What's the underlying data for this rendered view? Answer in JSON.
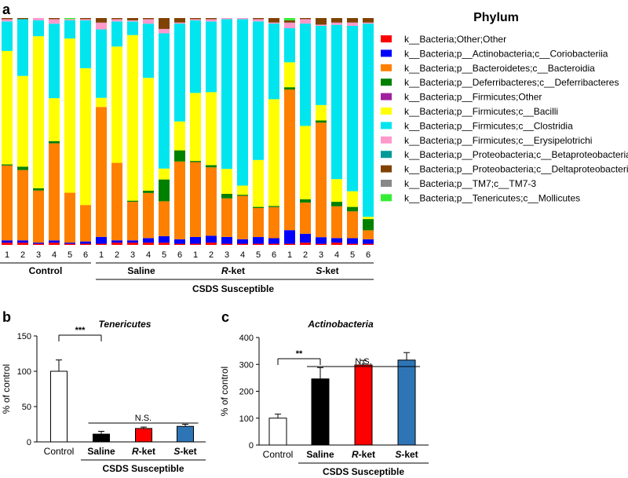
{
  "panel_labels": {
    "a": "a",
    "b": "b",
    "c": "c"
  },
  "group_labels": {
    "control": "Control",
    "saline": "Saline",
    "rket_prefix": "R",
    "sket_prefix": "S",
    "ket_suffix": "-ket",
    "csds": "CSDS Susceptible"
  },
  "chart_data": [
    {
      "type": "stacked_bar",
      "title": "Phylum",
      "sample_labels": [
        "1",
        "2",
        "3",
        "4",
        "5",
        "6",
        "1",
        "2",
        "3",
        "4",
        "5",
        "6",
        "1",
        "2",
        "3",
        "4",
        "5",
        "6",
        "1",
        "2",
        "3",
        "4",
        "5",
        "6"
      ],
      "series": [
        {
          "name": "k__Bacteria;Other;Other",
          "color": "#ff0000",
          "values": [
            1,
            1,
            0.5,
            1,
            0.5,
            0.5,
            0.5,
            1,
            1,
            1,
            1,
            0.5,
            0.5,
            1,
            0.5,
            0.5,
            0.5,
            0.5,
            0.5,
            1,
            0.5,
            1,
            0.5,
            0.5
          ]
        },
        {
          "name": "k__Bacteria;p__Actinobacteria;c__Coriobacteriia",
          "color": "#0000ff",
          "values": [
            1,
            1,
            0.5,
            1,
            0.5,
            1,
            3,
            1,
            1,
            2,
            3,
            2,
            3,
            3,
            3,
            2,
            3,
            2.5,
            6,
            4,
            3,
            2,
            2.5,
            2
          ]
        },
        {
          "name": "k__Bacteria;p__Bacteroidetes;c__Bacteroidia",
          "color": "#ff7f00",
          "values": [
            33,
            31,
            23,
            43,
            22,
            16,
            57,
            34,
            17,
            20,
            16,
            35,
            33,
            30,
            17,
            19,
            13,
            14,
            62,
            14,
            52,
            14,
            12,
            4
          ]
        },
        {
          "name": "k__Bacteria;p__Deferribacteres;c__Deferribacteres",
          "color": "#008000",
          "values": [
            0.5,
            1.5,
            1,
            1,
            0,
            0,
            0,
            0,
            0.5,
            1,
            10,
            5,
            0.5,
            1,
            2,
            0.5,
            0.5,
            0.5,
            1,
            1.5,
            1,
            2,
            2,
            5
          ]
        },
        {
          "name": "k__Bacteria;p__Firmicutes;Other",
          "color": "#a020a0",
          "values": [
            0,
            0,
            0,
            0,
            0,
            0,
            0,
            0,
            0,
            0,
            0,
            0,
            0,
            0,
            0,
            0,
            0,
            0,
            0,
            0,
            0,
            0,
            0,
            0
          ]
        },
        {
          "name": "k__Bacteria;p__Firmicutes;c__Bacilli",
          "color": "#ffff00",
          "values": [
            50,
            40,
            67,
            19,
            68,
            60,
            4,
            51,
            73,
            50,
            5,
            13,
            30,
            32,
            11,
            4,
            21,
            48,
            11,
            33,
            7,
            10,
            7,
            1
          ]
        },
        {
          "name": "k__Bacteria;p__Firmicutes;c__Clostridia",
          "color": "#00e5ee",
          "values": [
            13,
            25,
            7,
            33,
            8,
            21,
            30,
            11,
            6,
            24,
            62,
            44,
            32,
            31,
            66,
            73,
            62,
            34,
            15,
            46,
            36,
            68,
            74,
            86
          ]
        },
        {
          "name": "k__Bacteria;p__Firmicutes;c__Erysipelotrichi",
          "color": "#ff99cc",
          "values": [
            1,
            0,
            1,
            2,
            0.5,
            0.5,
            3,
            1,
            0.5,
            2,
            2,
            0.5,
            0.5,
            1,
            0.5,
            0.5,
            1,
            0.5,
            2.5,
            2,
            0.5,
            1,
            1.5,
            0.5
          ]
        },
        {
          "name": "k__Bacteria;p__Proteobacteria;c__Betaproteobacteria",
          "color": "#009999",
          "values": [
            0,
            0,
            0,
            0,
            0,
            0,
            0,
            0,
            0,
            0,
            0,
            0,
            0,
            0,
            0,
            0,
            0,
            0,
            0,
            0,
            0,
            0,
            0,
            0
          ]
        },
        {
          "name": "k__Bacteria;p__Proteobacteria;c__Deltaproteobacteria",
          "color": "#7f4200",
          "values": [
            0.5,
            0.5,
            0,
            0.5,
            0,
            0.5,
            2,
            0.5,
            1,
            0.5,
            5,
            2,
            0.5,
            0.5,
            0,
            0,
            0.5,
            2,
            1,
            0.5,
            3,
            2,
            2,
            2
          ]
        },
        {
          "name": "k__Bacteria;p__TM7;c__TM7-3",
          "color": "#888888",
          "values": [
            0,
            0,
            0,
            0,
            0,
            0,
            0,
            0,
            0,
            0,
            0,
            0,
            0,
            0,
            0,
            0,
            0,
            0,
            0,
            0,
            0,
            0,
            0,
            0
          ]
        },
        {
          "name": "k__Bacteria;p__Tenericutes;c__Mollicutes",
          "color": "#33ee33",
          "values": [
            0,
            0,
            0,
            0,
            0.5,
            0,
            0,
            0,
            0,
            0,
            0,
            0,
            0,
            0,
            0,
            0,
            0,
            0,
            1,
            0,
            0,
            0,
            0,
            0
          ]
        }
      ]
    },
    {
      "type": "bar",
      "title": "Tenericutes",
      "ylabel": "% of control",
      "ylim": [
        0,
        150
      ],
      "yticks": [
        0,
        50,
        100,
        150
      ],
      "categories": [
        "Control",
        "Saline",
        "R-ket",
        "S-ket"
      ],
      "values": [
        100,
        11,
        19,
        22
      ],
      "errors": [
        16,
        4,
        2,
        3
      ],
      "colors": [
        "#ffffff",
        "#000000",
        "#ff0000",
        "#2e75b6"
      ],
      "significance": [
        {
          "label": "***",
          "from": 0,
          "to": 1
        },
        {
          "label": "N.S.",
          "from": 1,
          "to": 3
        }
      ]
    },
    {
      "type": "bar",
      "title": "Actinobacteria",
      "ylabel": "% of control",
      "ylim": [
        0,
        400
      ],
      "yticks": [
        0,
        100,
        200,
        300,
        400
      ],
      "categories": [
        "Control",
        "Saline",
        "R-ket",
        "S-ket"
      ],
      "values": [
        100,
        246,
        298,
        316
      ],
      "errors": [
        15,
        42,
        17,
        28
      ],
      "colors": [
        "#ffffff",
        "#000000",
        "#ff0000",
        "#2e75b6"
      ],
      "significance": [
        {
          "label": "**",
          "from": 0,
          "to": 1
        },
        {
          "label": "N.S.",
          "from": 1,
          "to": 3
        }
      ]
    }
  ]
}
